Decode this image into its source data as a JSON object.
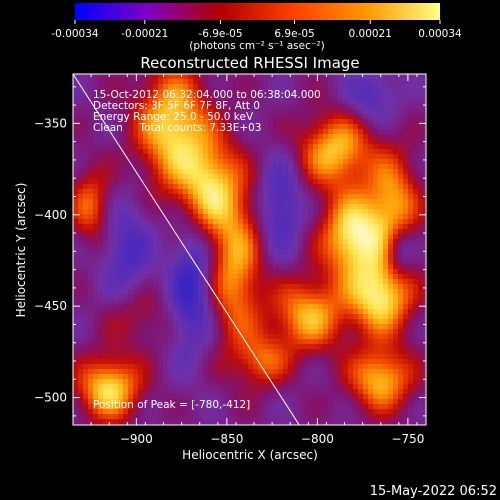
{
  "colorbar": {
    "tick_labels": [
      "-0.00034",
      "-0.00021",
      "-6.9e-05",
      "6.9e-05",
      "0.00021",
      "0.00034"
    ],
    "tick_values": [
      -0.00034,
      -0.00021,
      -6.9e-05,
      6.9e-05,
      0.00021,
      0.00034
    ],
    "range": [
      -0.00034,
      0.00034
    ],
    "unit_label": "(photons cm⁻² s⁻¹ asec⁻²)",
    "colors": [
      "#0000ff",
      "#8000c0",
      "#b00000",
      "#ff4000",
      "#ff9900",
      "#ffff80"
    ]
  },
  "chart_data": {
    "type": "heatmap",
    "title": "Reconstructed RHESSI Image",
    "xlabel": "Heliocentric X (arcsec)",
    "ylabel": "Heliocentric Y (arcsec)",
    "xlim": [
      -935,
      -740
    ],
    "ylim": [
      -515,
      -323
    ],
    "x_ticks": [
      -900,
      -850,
      -800,
      -750
    ],
    "y_ticks": [
      -500,
      -450,
      -400,
      -350
    ],
    "x_tick_labels": [
      "−900",
      "−850",
      "−800",
      "−750"
    ],
    "y_tick_labels": [
      "−500",
      "−450",
      "−400",
      "−350"
    ],
    "limb_line": [
      [
        -935,
        -323
      ],
      [
        -810,
        -515
      ]
    ],
    "annotations": [
      "15-Oct-2012 06:32:04.000 to 06:38:04.000",
      "Detectors: 3F 5F 6F 7F 8F, Att 0",
      "Energy Range: 25.0 - 50.0 keV",
      "Clean     Total counts: 7.33E+03"
    ],
    "peak_label": "Position of Peak = [-780,-412]",
    "peak": [
      -780,
      -412
    ],
    "sources": [
      {
        "x": -880,
        "y": -352,
        "sx": 14,
        "sy": 22,
        "v": 0.9
      },
      {
        "x": -860,
        "y": -385,
        "sx": 12,
        "sy": 18,
        "v": 0.8
      },
      {
        "x": -845,
        "y": -430,
        "sx": 10,
        "sy": 30,
        "v": 0.7
      },
      {
        "x": -790,
        "y": -365,
        "sx": 14,
        "sy": 14,
        "v": 0.8
      },
      {
        "x": -780,
        "y": -412,
        "sx": 12,
        "sy": 16,
        "v": 1.0
      },
      {
        "x": -765,
        "y": -445,
        "sx": 12,
        "sy": 14,
        "v": 0.95
      },
      {
        "x": -758,
        "y": -395,
        "sx": 10,
        "sy": 20,
        "v": 0.7
      },
      {
        "x": -805,
        "y": -455,
        "sx": 14,
        "sy": 14,
        "v": 0.75
      },
      {
        "x": -915,
        "y": -495,
        "sx": 12,
        "sy": 12,
        "v": 0.9
      },
      {
        "x": -765,
        "y": -490,
        "sx": 12,
        "sy": 12,
        "v": 0.8
      },
      {
        "x": -830,
        "y": -480,
        "sx": 10,
        "sy": 10,
        "v": 0.5
      },
      {
        "x": -900,
        "y": -455,
        "sx": 12,
        "sy": 12,
        "v": 0.3
      },
      {
        "x": -925,
        "y": -395,
        "sx": 8,
        "sy": 14,
        "v": 0.55
      },
      {
        "x": -870,
        "y": -440,
        "sx": 8,
        "sy": 25,
        "v": -0.6
      },
      {
        "x": -820,
        "y": -395,
        "sx": 8,
        "sy": 18,
        "v": -0.5
      },
      {
        "x": -905,
        "y": -420,
        "sx": 10,
        "sy": 20,
        "v": -0.45
      },
      {
        "x": -770,
        "y": -335,
        "sx": 10,
        "sy": 10,
        "v": -0.4
      },
      {
        "x": -755,
        "y": -420,
        "sx": 6,
        "sy": 10,
        "v": -0.5
      }
    ]
  },
  "footer": {
    "timestamp": "15-May-2022 06:52"
  }
}
